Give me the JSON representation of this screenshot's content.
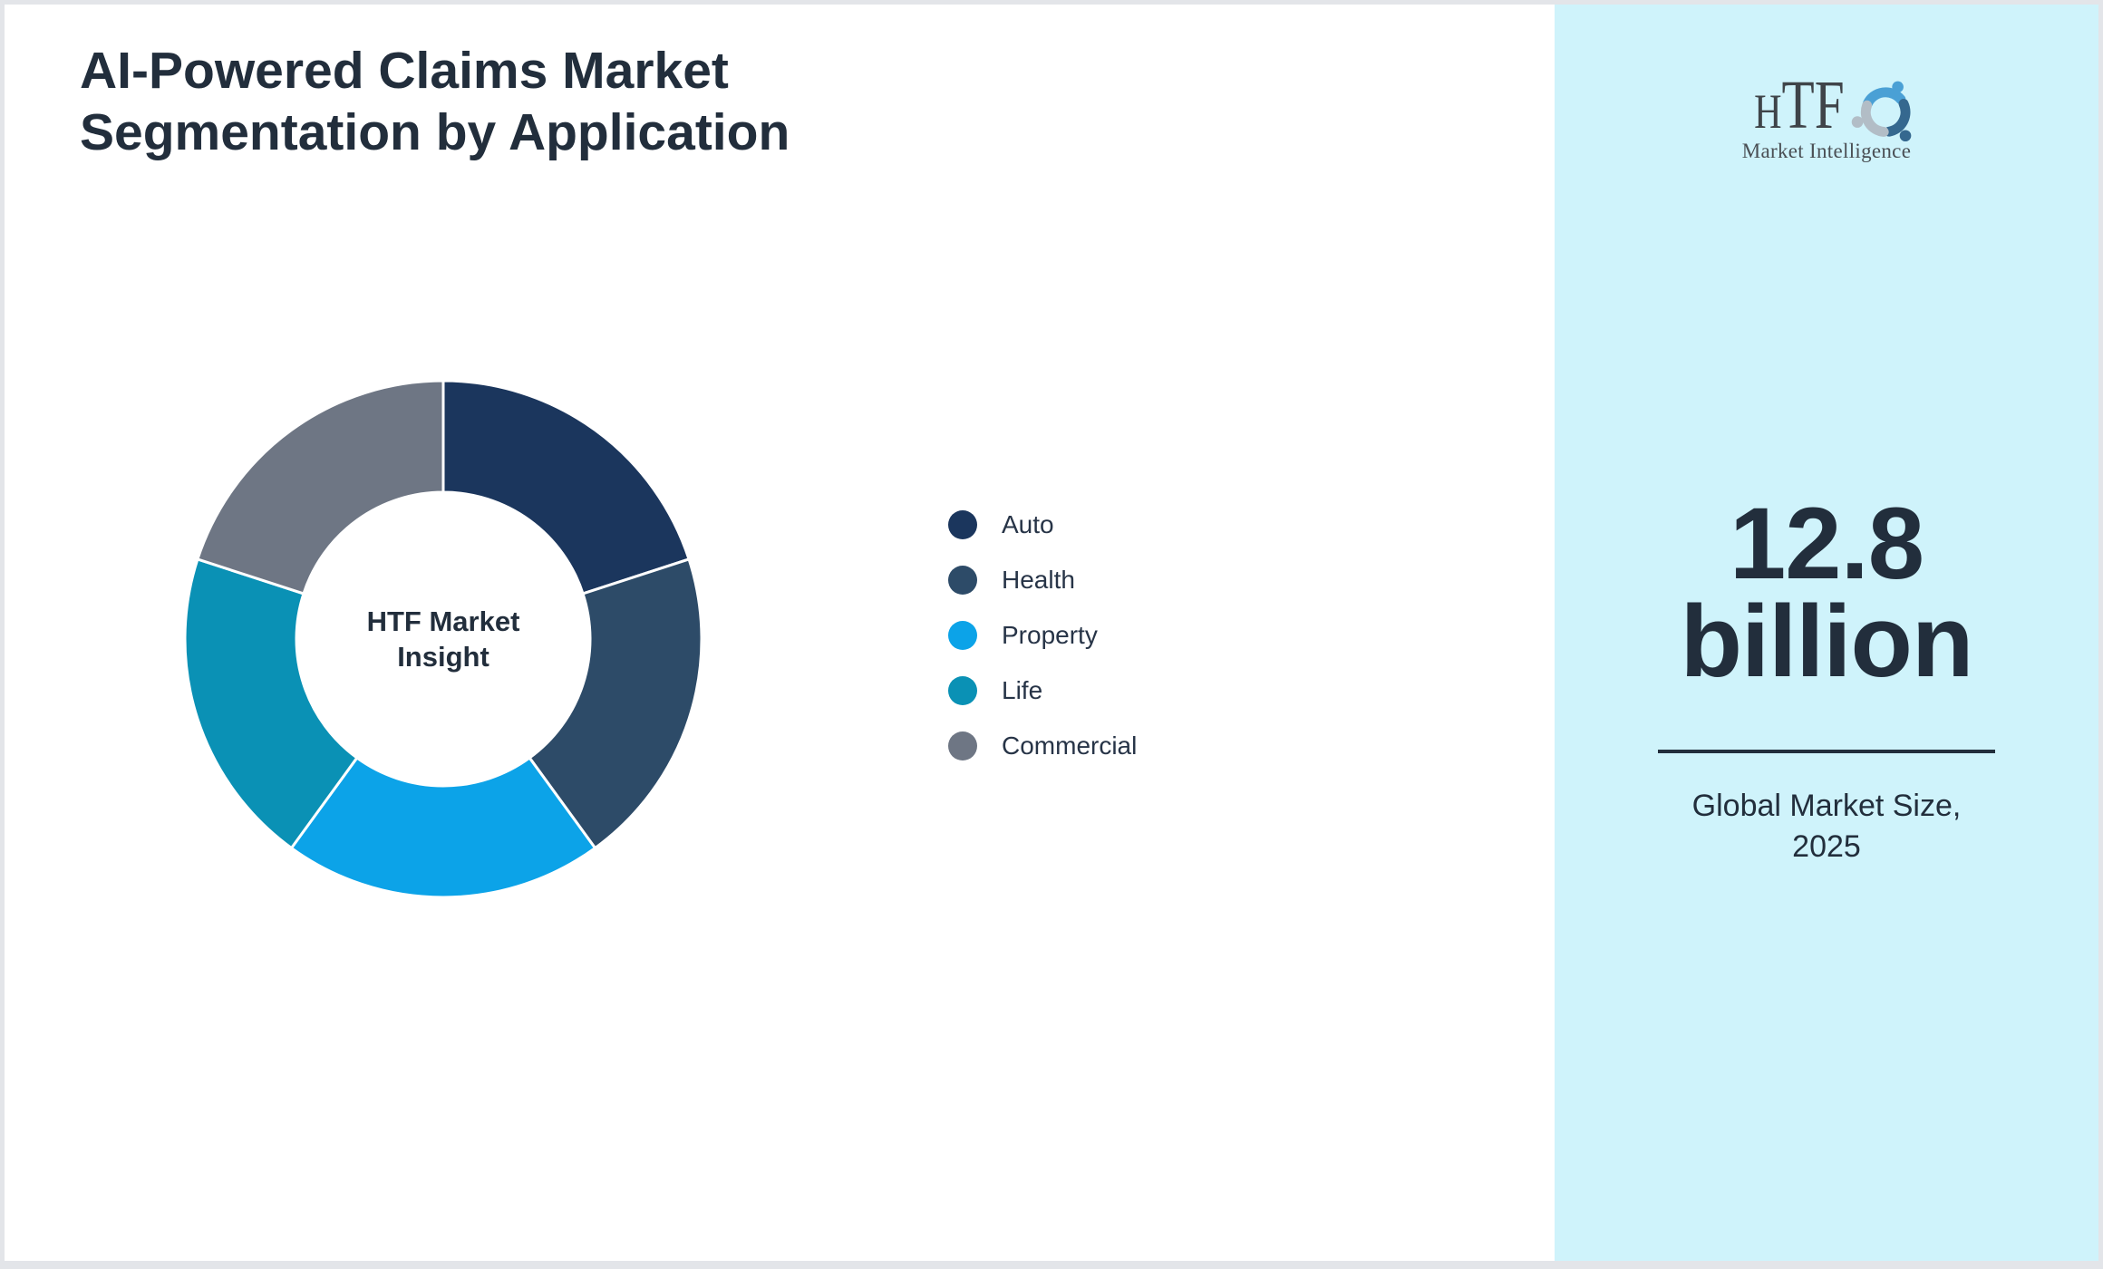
{
  "header": {
    "title": "AI-Powered Claims Market Segmentation by Application"
  },
  "chart_data": {
    "type": "pie",
    "variant": "donut",
    "title": "AI-Powered Claims Market Segmentation by Application",
    "center_label_lines": [
      "HTF Market",
      "Insight"
    ],
    "start_angle_deg": 0,
    "direction": "clockwise",
    "legend_position": "right-of-chart",
    "units": "%",
    "segments": [
      {
        "label": "Auto",
        "value": 20,
        "color": "#1b365d"
      },
      {
        "label": "Health",
        "value": 20,
        "color": "#2d4b68"
      },
      {
        "label": "Property",
        "value": 20,
        "color": "#0ca3e8"
      },
      {
        "label": "Life",
        "value": 20,
        "color": "#0a91b5"
      },
      {
        "label": "Commercial",
        "value": 20,
        "color": "#6e7684"
      }
    ]
  },
  "logo": {
    "name_part1": "H",
    "name_part2": "TF",
    "subtitle": "Market Intelligence"
  },
  "panel": {
    "background": "#cff3fb",
    "value_line1": "12.8",
    "value_line2": "billion",
    "caption_line1": "Global Market Size,",
    "caption_line2": "2025"
  },
  "colors": {
    "text_primary": "#222e3c",
    "legend_text": "#273447",
    "page_border": "#e3e5e9"
  }
}
